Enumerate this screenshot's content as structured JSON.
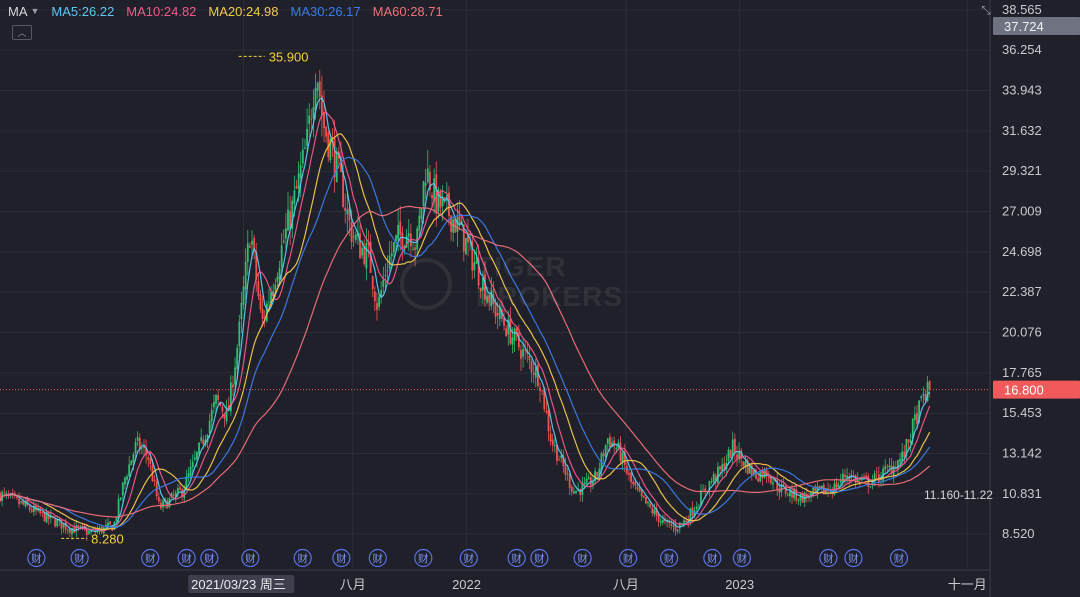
{
  "indicator": {
    "title": "MA",
    "items": [
      {
        "label": "MA5:26.22",
        "color": "#5ec8f2"
      },
      {
        "label": "MA10:24.82",
        "color": "#f0598c"
      },
      {
        "label": "MA20:24.98",
        "color": "#f2c94c"
      },
      {
        "label": "MA30:26.17",
        "color": "#3b7de9"
      },
      {
        "label": "MA60:28.71",
        "color": "#f0707a"
      }
    ]
  },
  "watermark": {
    "line1": "TIGER",
    "line2": "BROKERS"
  },
  "colors": {
    "up": "#2fbf71",
    "down": "#ef5350",
    "current": "#f05a5a",
    "peak": "#f5d13b"
  },
  "chart_data": {
    "type": "candlestick",
    "y_axis": {
      "ticks": [
        38.565,
        36.254,
        33.943,
        31.632,
        29.321,
        27.009,
        24.698,
        22.387,
        20.076,
        17.765,
        15.453,
        13.142,
        10.831,
        8.52
      ],
      "range": [
        7.9,
        38.9
      ]
    },
    "top_badge": "37.724",
    "current_price": "16.800",
    "high_marker": {
      "label": "35.900",
      "value": 35.9,
      "month": 10.4
    },
    "low_marker": {
      "label": "8.280",
      "value": 8.28,
      "month": 2.6
    },
    "range_label": "11.160-11.22",
    "x_axis": [
      {
        "label": "2021/03/23 周三",
        "month": 10.7,
        "highlight": true
      },
      {
        "label": "八月",
        "month": 15.5
      },
      {
        "label": "2022",
        "month": 20.5
      },
      {
        "label": "八月",
        "month": 27.5
      },
      {
        "label": "2023",
        "month": 32.5
      },
      {
        "label": "十一月",
        "month": 42.5
      }
    ],
    "x_range": [
      0,
      43.5
    ],
    "earnings_markers": {
      "label": "财",
      "months": [
        1.6,
        3.5,
        6.6,
        8.2,
        9.2,
        11.0,
        13.3,
        15.0,
        16.6,
        18.6,
        20.6,
        22.7,
        23.7,
        25.6,
        27.6,
        29.4,
        31.3,
        32.6,
        36.4,
        37.5,
        39.5
      ]
    },
    "price_path": [
      [
        0,
        10.8
      ],
      [
        1,
        10.2
      ],
      [
        2,
        9.5
      ],
      [
        3,
        8.9
      ],
      [
        4,
        8.6
      ],
      [
        5,
        9.0
      ],
      [
        5.5,
        11.8
      ],
      [
        6,
        13.7
      ],
      [
        6.5,
        13.0
      ],
      [
        7,
        10.0
      ],
      [
        7.5,
        10.5
      ],
      [
        8,
        11.0
      ],
      [
        8.5,
        12.5
      ],
      [
        9,
        14.2
      ],
      [
        9.5,
        16.2
      ],
      [
        10,
        15.3
      ],
      [
        10.5,
        20.0
      ],
      [
        11,
        26.0
      ],
      [
        11.5,
        20.5
      ],
      [
        12,
        23.0
      ],
      [
        12.5,
        25.5
      ],
      [
        13,
        28.0
      ],
      [
        13.5,
        31.0
      ],
      [
        13.9,
        35.5
      ],
      [
        14.2,
        32.0
      ],
      [
        14.6,
        30.5
      ],
      [
        15,
        28.5
      ],
      [
        15.4,
        26.0
      ],
      [
        15.8,
        25.0
      ],
      [
        16.2,
        24.5
      ],
      [
        16.6,
        21.5
      ],
      [
        17,
        24.0
      ],
      [
        17.5,
        25.5
      ],
      [
        18,
        26.0
      ],
      [
        18.3,
        25.0
      ],
      [
        18.7,
        29.5
      ],
      [
        19.2,
        27.5
      ],
      [
        19.7,
        27.0
      ],
      [
        20.2,
        26.0
      ],
      [
        20.7,
        24.5
      ],
      [
        21.2,
        23.0
      ],
      [
        21.7,
        21.5
      ],
      [
        22.2,
        20.5
      ],
      [
        22.7,
        19.5
      ],
      [
        23.2,
        18.5
      ],
      [
        23.7,
        17.5
      ],
      [
        24.2,
        14.0
      ],
      [
        24.7,
        12.5
      ],
      [
        25.2,
        11.0
      ],
      [
        25.7,
        11.2
      ],
      [
        26.2,
        11.8
      ],
      [
        26.7,
        14.0
      ],
      [
        27.2,
        13.3
      ],
      [
        27.7,
        11.5
      ],
      [
        28.2,
        10.5
      ],
      [
        28.7,
        9.8
      ],
      [
        29.2,
        9.1
      ],
      [
        29.7,
        8.9
      ],
      [
        30.2,
        9.4
      ],
      [
        30.7,
        10.5
      ],
      [
        31.2,
        11.5
      ],
      [
        31.7,
        12.2
      ],
      [
        32.2,
        13.5
      ],
      [
        32.7,
        12.6
      ],
      [
        33.2,
        11.9
      ],
      [
        33.7,
        12.1
      ],
      [
        34.2,
        11.2
      ],
      [
        34.7,
        10.9
      ],
      [
        35.2,
        10.6
      ],
      [
        35.7,
        10.8
      ],
      [
        36.2,
        11.0
      ],
      [
        36.7,
        11.2
      ],
      [
        37.2,
        12.0
      ],
      [
        37.7,
        11.6
      ],
      [
        38.2,
        11.5
      ],
      [
        38.7,
        11.9
      ],
      [
        39.2,
        12.4
      ],
      [
        39.7,
        13.0
      ],
      [
        40.2,
        15.0
      ],
      [
        40.6,
        16.5
      ],
      [
        40.85,
        16.8
      ]
    ]
  }
}
